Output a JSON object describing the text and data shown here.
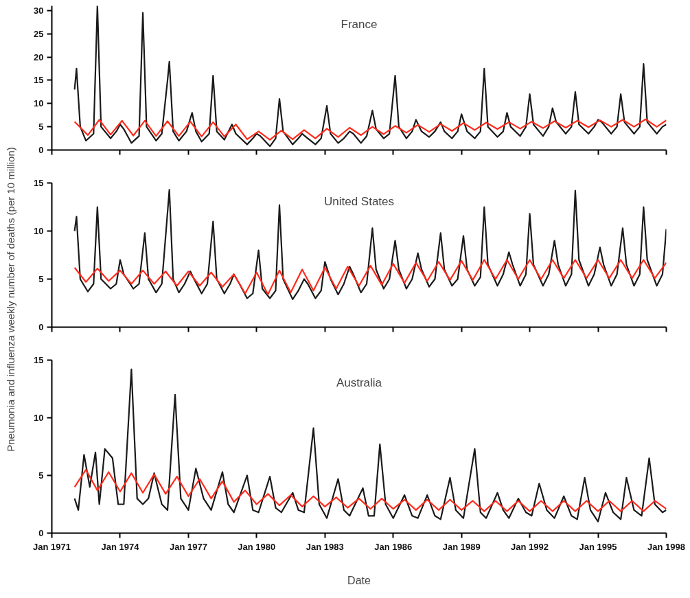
{
  "chart_data": [
    {
      "type": "line",
      "title": "France",
      "tick_labels": "y",
      "xlim": [
        "1971-01",
        "1998-01"
      ],
      "ylim": [
        0,
        31
      ],
      "yticks": [
        0,
        5,
        10,
        15,
        20,
        25,
        30
      ],
      "xticks": [
        "1971-01",
        "1974-01",
        "1977-01",
        "1980-01",
        "1983-01",
        "1986-01",
        "1989-01",
        "1992-01",
        "1995-01",
        "1998-01"
      ],
      "series": [
        {
          "color": "#1a1a1a",
          "x": [
            "1972-01",
            "1972-02",
            "1972-04",
            "1972-07",
            "1972-11",
            "1973-01",
            "1973-03",
            "1973-08",
            "1973-11",
            "1974-01",
            "1974-03",
            "1974-07",
            "1974-11",
            "1975-01",
            "1975-03",
            "1975-08",
            "1975-11",
            "1976-02",
            "1976-03",
            "1976-05",
            "1976-08",
            "1976-12",
            "1977-03",
            "1977-05",
            "1977-08",
            "1977-12",
            "1978-02",
            "1978-04",
            "1978-08",
            "1978-12",
            "1979-02",
            "1979-08",
            "1979-11",
            "1980-01",
            "1980-03",
            "1980-08",
            "1980-11",
            "1981-01",
            "1981-03",
            "1981-08",
            "1981-11",
            "1982-01",
            "1982-04",
            "1982-08",
            "1982-11",
            "1983-02",
            "1983-04",
            "1983-08",
            "1983-11",
            "1984-02",
            "1984-04",
            "1984-08",
            "1984-11",
            "1985-02",
            "1985-04",
            "1985-08",
            "1985-11",
            "1986-02",
            "1986-04",
            "1986-08",
            "1986-11",
            "1987-01",
            "1987-04",
            "1987-08",
            "1987-11",
            "1988-02",
            "1988-04",
            "1988-08",
            "1988-11",
            "1989-01",
            "1989-04",
            "1989-08",
            "1989-11",
            "1990-01",
            "1990-03",
            "1990-08",
            "1990-11",
            "1991-01",
            "1991-03",
            "1991-08",
            "1991-11",
            "1992-01",
            "1992-03",
            "1992-08",
            "1992-11",
            "1993-01",
            "1993-03",
            "1993-08",
            "1993-11",
            "1994-01",
            "1994-03",
            "1994-08",
            "1994-11",
            "1995-01",
            "1995-03",
            "1995-08",
            "1995-11",
            "1996-01",
            "1996-03",
            "1996-08",
            "1996-11",
            "1997-01",
            "1997-03",
            "1997-08",
            "1997-11",
            "1998-01"
          ],
          "values": [
            13,
            17.5,
            5,
            2,
            3.5,
            31,
            5,
            2.5,
            4,
            5.5,
            4.5,
            1.5,
            3,
            29.5,
            5,
            2,
            3.5,
            15,
            19,
            4,
            2,
            4,
            8,
            4,
            1.8,
            3.5,
            16,
            4,
            2.2,
            5.5,
            3.5,
            1.2,
            2.5,
            3.5,
            3,
            0.8,
            2.5,
            11,
            4,
            1.2,
            2.5,
            3.5,
            2.5,
            1.2,
            2.5,
            9.5,
            3.5,
            1.5,
            2.5,
            4,
            3.5,
            1.5,
            3,
            8.5,
            4.5,
            2.5,
            3.5,
            16,
            5,
            2.5,
            4,
            6.5,
            4,
            2.8,
            4,
            6,
            4,
            2.5,
            4,
            7.7,
            4,
            2.5,
            4,
            17.5,
            5,
            2.8,
            4,
            8,
            5,
            3,
            5,
            12,
            5.5,
            3,
            5,
            9,
            6,
            3.5,
            5,
            12.5,
            5.5,
            3.5,
            5,
            6.5,
            6,
            3.5,
            5,
            12,
            6,
            3.5,
            5,
            18.5,
            6,
            3.5,
            5,
            5.5
          ]
        },
        {
          "color": "#ff2a1a",
          "x": [
            "1972-01",
            "1972-08",
            "1973-02",
            "1973-08",
            "1974-02",
            "1974-08",
            "1975-02",
            "1975-08",
            "1976-02",
            "1976-08",
            "1977-02",
            "1977-08",
            "1978-02",
            "1978-08",
            "1979-02",
            "1979-08",
            "1980-02",
            "1980-08",
            "1981-02",
            "1981-08",
            "1982-02",
            "1982-08",
            "1983-02",
            "1983-08",
            "1984-02",
            "1984-08",
            "1985-02",
            "1985-08",
            "1986-02",
            "1986-08",
            "1987-02",
            "1987-08",
            "1988-02",
            "1988-08",
            "1989-02",
            "1989-08",
            "1990-02",
            "1990-08",
            "1991-02",
            "1991-08",
            "1992-02",
            "1992-08",
            "1993-02",
            "1993-08",
            "1994-02",
            "1994-08",
            "1995-02",
            "1995-08",
            "1996-02",
            "1996-08",
            "1997-02",
            "1997-08",
            "1998-01"
          ],
          "values": [
            6.1,
            3.2,
            6.5,
            3.3,
            6.3,
            3.1,
            6.3,
            3.0,
            6.2,
            3.0,
            6.1,
            2.9,
            6.0,
            2.9,
            5.5,
            2.3,
            4.0,
            2.2,
            4.2,
            2.3,
            4.3,
            2.5,
            4.6,
            2.8,
            4.8,
            3.2,
            5.0,
            3.4,
            5.2,
            3.7,
            5.4,
            3.9,
            5.6,
            4.1,
            5.8,
            4.3,
            5.9,
            4.5,
            6.0,
            4.6,
            6.1,
            4.7,
            6.2,
            4.8,
            6.3,
            4.9,
            6.4,
            5.0,
            6.5,
            5.0,
            6.6,
            5.0,
            6.4
          ]
        }
      ]
    },
    {
      "type": "line",
      "title": "United States",
      "tick_labels": "y",
      "ylabel": "Pneumonia and influenza weekly number of deaths (per 10 million)",
      "xlim": [
        "1971-01",
        "1998-01"
      ],
      "ylim": [
        0,
        15
      ],
      "yticks": [
        0,
        5,
        10,
        15
      ],
      "xticks": [
        "1971-01",
        "1974-01",
        "1977-01",
        "1980-01",
        "1983-01",
        "1986-01",
        "1989-01",
        "1992-01",
        "1995-01",
        "1998-01"
      ],
      "series": [
        {
          "color": "#1a1a1a",
          "x": [
            "1972-01",
            "1972-02",
            "1972-04",
            "1972-08",
            "1972-11",
            "1973-01",
            "1973-03",
            "1973-08",
            "1973-11",
            "1974-01",
            "1974-03",
            "1974-08",
            "1974-11",
            "1975-02",
            "1975-04",
            "1975-08",
            "1975-11",
            "1976-03",
            "1976-05",
            "1976-08",
            "1976-11",
            "1977-02",
            "1977-04",
            "1977-08",
            "1977-11",
            "1978-02",
            "1978-04",
            "1978-08",
            "1978-11",
            "1979-01",
            "1979-04",
            "1979-08",
            "1979-11",
            "1980-02",
            "1980-04",
            "1980-08",
            "1980-11",
            "1981-01",
            "1981-03",
            "1981-08",
            "1981-11",
            "1982-02",
            "1982-04",
            "1982-08",
            "1982-11",
            "1983-01",
            "1983-04",
            "1983-08",
            "1983-11",
            "1984-02",
            "1984-04",
            "1984-08",
            "1984-11",
            "1985-02",
            "1985-04",
            "1985-08",
            "1985-11",
            "1986-02",
            "1986-04",
            "1986-08",
            "1986-11",
            "1987-02",
            "1987-04",
            "1987-08",
            "1987-11",
            "1988-02",
            "1988-04",
            "1988-08",
            "1988-11",
            "1989-02",
            "1989-04",
            "1989-08",
            "1989-11",
            "1990-01",
            "1990-03",
            "1990-08",
            "1990-11",
            "1991-02",
            "1991-04",
            "1991-08",
            "1991-11",
            "1992-01",
            "1992-03",
            "1992-08",
            "1992-11",
            "1993-02",
            "1993-04",
            "1993-08",
            "1993-11",
            "1994-01",
            "1994-03",
            "1994-08",
            "1994-11",
            "1995-02",
            "1995-04",
            "1995-08",
            "1995-11",
            "1996-02",
            "1996-04",
            "1996-08",
            "1996-11",
            "1997-01",
            "1997-03",
            "1997-08",
            "1997-11",
            "1998-01"
          ],
          "values": [
            10,
            11.5,
            5,
            3.7,
            4.5,
            12.5,
            5,
            4,
            4.5,
            7,
            5.5,
            4,
            4.5,
            9.8,
            5,
            3.6,
            4.5,
            14.3,
            5,
            3.6,
            4.5,
            5.8,
            5,
            3.5,
            4.5,
            11,
            5,
            3.5,
            4.5,
            5.5,
            4.5,
            3,
            3.5,
            8,
            4,
            3,
            3.8,
            12.7,
            5,
            2.9,
            3.8,
            5,
            4.5,
            3,
            3.8,
            6.8,
            5,
            3.4,
            4.5,
            6.3,
            5.5,
            3.6,
            4.5,
            10.3,
            6,
            4,
            5,
            9,
            6,
            4,
            5,
            7.7,
            6,
            4.2,
            5,
            9.8,
            6,
            4.3,
            5,
            9.5,
            6,
            4.3,
            5.2,
            12.5,
            6.5,
            4.3,
            5.5,
            7.8,
            6.5,
            4.3,
            5.5,
            11.8,
            6.5,
            4.3,
            5.5,
            9,
            6.5,
            4.3,
            5.5,
            14.2,
            7,
            4.3,
            5.5,
            8.3,
            6.5,
            4.3,
            5.5,
            10.3,
            6.5,
            4.3,
            5.5,
            12.5,
            7,
            4.3,
            5.5,
            10.2
          ]
        },
        {
          "color": "#ff2a1a",
          "x": [
            "1972-01",
            "1972-07",
            "1973-01",
            "1973-07",
            "1974-01",
            "1974-07",
            "1975-01",
            "1975-07",
            "1976-01",
            "1976-07",
            "1977-01",
            "1977-07",
            "1978-01",
            "1978-07",
            "1979-01",
            "1979-07",
            "1980-01",
            "1980-07",
            "1981-01",
            "1981-07",
            "1982-01",
            "1982-07",
            "1983-01",
            "1983-07",
            "1984-01",
            "1984-07",
            "1985-01",
            "1985-07",
            "1986-01",
            "1986-07",
            "1987-01",
            "1987-07",
            "1988-01",
            "1988-07",
            "1989-01",
            "1989-07",
            "1990-01",
            "1990-07",
            "1991-01",
            "1991-07",
            "1992-01",
            "1992-07",
            "1993-01",
            "1993-07",
            "1994-01",
            "1994-07",
            "1995-01",
            "1995-07",
            "1996-01",
            "1996-07",
            "1997-01",
            "1997-07",
            "1998-01"
          ],
          "values": [
            6.2,
            4.7,
            6.1,
            4.8,
            5.9,
            4.5,
            5.9,
            4.5,
            5.8,
            4.3,
            5.8,
            4.3,
            5.7,
            4.2,
            5.5,
            3.5,
            5.7,
            3.4,
            5.9,
            3.6,
            6.0,
            3.8,
            6.2,
            4.0,
            6.3,
            4.3,
            6.4,
            4.4,
            6.6,
            4.6,
            6.7,
            4.8,
            6.8,
            4.9,
            6.9,
            4.9,
            7.0,
            5.0,
            7.0,
            5.0,
            7.0,
            5.0,
            7.0,
            5.1,
            7.0,
            5.1,
            7.0,
            5.1,
            7.0,
            5.1,
            7.0,
            5.1,
            6.7
          ]
        }
      ]
    },
    {
      "type": "line",
      "title": "Australia",
      "xlabel": "Date",
      "xlim": [
        "1971-01",
        "1998-01"
      ],
      "ylim": [
        0,
        15
      ],
      "yticks": [
        0,
        5,
        10,
        15
      ],
      "xticks": [
        {
          "value": "1971-01",
          "label": "Jan 1971"
        },
        {
          "value": "1974-01",
          "label": "Jan 1974"
        },
        {
          "value": "1977-01",
          "label": "Jan 1977"
        },
        {
          "value": "1980-01",
          "label": "Jan 1980"
        },
        {
          "value": "1983-01",
          "label": "Jan 1983"
        },
        {
          "value": "1986-01",
          "label": "Jan 1986"
        },
        {
          "value": "1989-01",
          "label": "Jan 1989"
        },
        {
          "value": "1992-01",
          "label": "Jan 1992"
        },
        {
          "value": "1995-01",
          "label": "Jan 1995"
        },
        {
          "value": "1998-01",
          "label": "Jan 1998"
        }
      ],
      "series": [
        {
          "color": "#1a1a1a",
          "x": [
            "1972-01",
            "1972-03",
            "1972-06",
            "1972-09",
            "1972-12",
            "1973-02",
            "1973-05",
            "1973-09",
            "1973-12",
            "1974-03",
            "1974-07",
            "1974-10",
            "1975-01",
            "1975-04",
            "1975-07",
            "1975-11",
            "1976-02",
            "1976-06",
            "1976-09",
            "1977-01",
            "1977-05",
            "1977-09",
            "1978-01",
            "1978-07",
            "1978-10",
            "1979-01",
            "1979-08",
            "1979-11",
            "1980-02",
            "1980-08",
            "1980-11",
            "1981-02",
            "1981-08",
            "1981-11",
            "1982-02",
            "1982-07",
            "1982-10",
            "1983-02",
            "1983-08",
            "1983-11",
            "1984-02",
            "1984-09",
            "1984-12",
            "1985-03",
            "1985-06",
            "1985-09",
            "1986-01",
            "1986-07",
            "1986-11",
            "1987-02",
            "1987-07",
            "1987-11",
            "1988-02",
            "1988-07",
            "1988-10",
            "1989-02",
            "1989-08",
            "1989-11",
            "1990-02",
            "1990-08",
            "1990-11",
            "1991-02",
            "1991-07",
            "1991-11",
            "1992-02",
            "1992-06",
            "1992-10",
            "1993-02",
            "1993-07",
            "1993-11",
            "1994-02",
            "1994-06",
            "1994-09",
            "1995-01",
            "1995-05",
            "1995-09",
            "1996-01",
            "1996-04",
            "1996-08",
            "1996-12",
            "1997-04",
            "1997-07",
            "1997-11",
            "1998-01"
          ],
          "values": [
            3,
            2,
            6.8,
            4,
            7,
            2.5,
            7.3,
            6.5,
            2.5,
            2.5,
            14.2,
            3,
            2.5,
            3,
            5.2,
            2.5,
            2,
            12,
            3,
            2,
            5.6,
            3,
            2,
            5.3,
            2.5,
            1.8,
            5,
            2,
            1.8,
            4.9,
            2.2,
            1.8,
            3.5,
            2,
            1.8,
            9.1,
            2.5,
            1.3,
            4.7,
            2,
            1.5,
            3.9,
            1.5,
            1.5,
            7.7,
            2.5,
            1.3,
            3.3,
            1.5,
            1.3,
            3.3,
            1.5,
            1.2,
            4.8,
            2,
            1.3,
            7.3,
            1.8,
            1.3,
            3.5,
            2,
            1.3,
            3,
            1.8,
            1.5,
            4.3,
            2,
            1.3,
            3.2,
            1.5,
            1.2,
            4.8,
            2,
            1,
            3.5,
            1.8,
            1.2,
            4.8,
            2,
            1.5,
            6.5,
            2.5,
            1.8,
            2.0
          ]
        },
        {
          "color": "#ff2a1a",
          "x": [
            "1972-01",
            "1972-07",
            "1973-01",
            "1973-07",
            "1974-01",
            "1974-07",
            "1975-01",
            "1975-07",
            "1976-01",
            "1976-07",
            "1977-01",
            "1977-07",
            "1978-01",
            "1978-07",
            "1979-01",
            "1979-07",
            "1980-01",
            "1980-07",
            "1981-01",
            "1981-07",
            "1982-01",
            "1982-07",
            "1983-01",
            "1983-07",
            "1984-01",
            "1984-07",
            "1985-01",
            "1985-07",
            "1986-01",
            "1986-07",
            "1987-01",
            "1987-07",
            "1988-01",
            "1988-07",
            "1989-01",
            "1989-07",
            "1990-01",
            "1990-07",
            "1991-01",
            "1991-07",
            "1992-01",
            "1992-07",
            "1993-01",
            "1993-07",
            "1994-01",
            "1994-07",
            "1995-01",
            "1995-07",
            "1996-01",
            "1996-07",
            "1997-01",
            "1997-07",
            "1998-01"
          ],
          "values": [
            4.0,
            5.5,
            3.7,
            5.3,
            3.6,
            5.2,
            3.5,
            5.1,
            3.4,
            4.9,
            3.2,
            4.7,
            3.0,
            4.5,
            2.7,
            3.7,
            2.5,
            3.4,
            2.4,
            3.3,
            2.3,
            3.2,
            2.3,
            3.1,
            2.2,
            3.0,
            2.1,
            3.0,
            2.1,
            2.9,
            2.0,
            2.9,
            2.0,
            2.9,
            2.0,
            2.8,
            1.9,
            2.8,
            1.9,
            2.8,
            1.9,
            2.8,
            1.9,
            2.8,
            1.9,
            2.8,
            1.9,
            2.8,
            1.9,
            2.8,
            1.9,
            2.8,
            2.1
          ]
        }
      ]
    }
  ]
}
